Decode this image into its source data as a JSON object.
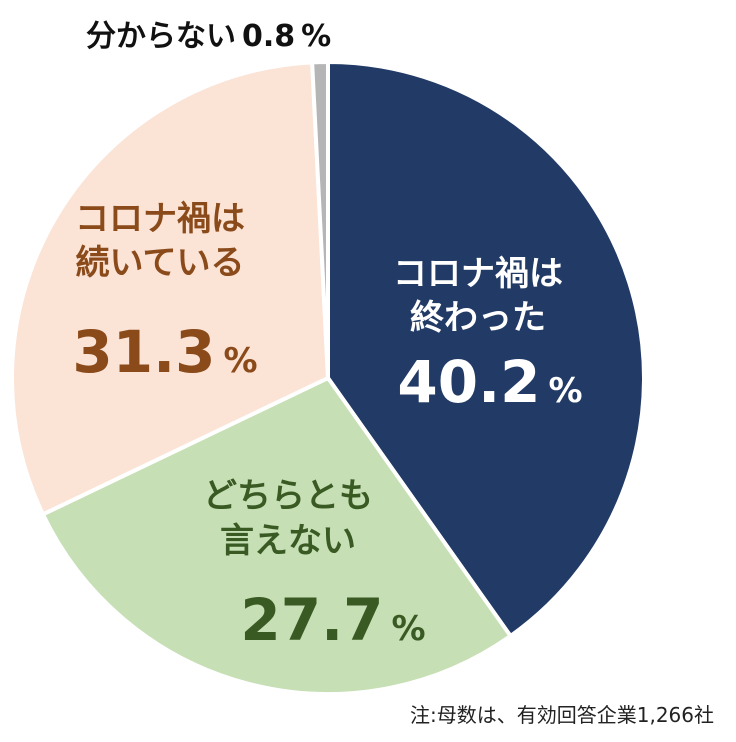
{
  "chart_data": {
    "type": "pie",
    "title": "",
    "start_angle_deg": 0,
    "direction": "clockwise",
    "slices": [
      {
        "label_lines": [
          "コロナ禍は",
          "終わった"
        ],
        "value": 40.2,
        "value_text": "40.2",
        "unit": "%",
        "color": "#213a66",
        "text_color": "#ffffff"
      },
      {
        "label_lines": [
          "どちらとも",
          "言えない"
        ],
        "value": 27.7,
        "value_text": "27.7",
        "unit": "%",
        "color": "#c6dfb5",
        "text_color": "#3a5a23"
      },
      {
        "label_lines": [
          "コロナ禍は",
          "続いている"
        ],
        "value": 31.3,
        "value_text": "31.3",
        "unit": "%",
        "color": "#fbe3d6",
        "text_color": "#8a4a1a"
      },
      {
        "label_lines": [
          "分からない"
        ],
        "value": 0.8,
        "value_text": "0.8",
        "unit": "%",
        "color": "#b5b5b5",
        "text_color": "#111111"
      }
    ]
  },
  "note": "注:母数は、有効回答企業1,266社"
}
